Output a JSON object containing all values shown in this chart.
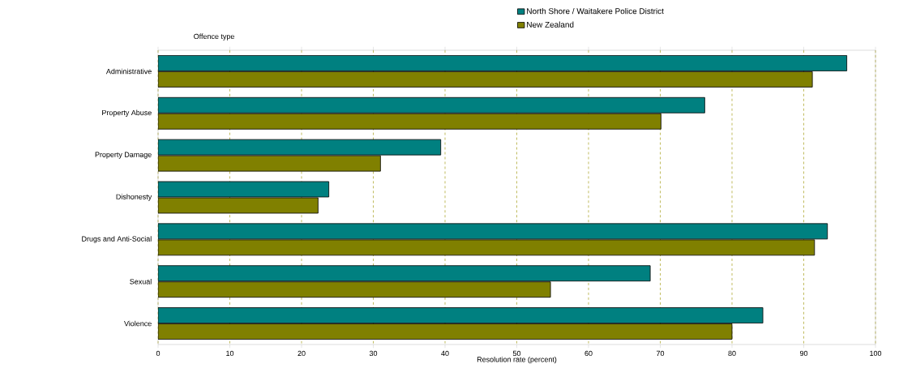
{
  "chart_data": {
    "type": "bar",
    "orientation": "horizontal",
    "xlabel": "Resolution rate (percent)",
    "ylabel": "Offence type",
    "categories": [
      "Administrative",
      "Property Abuse",
      "Property Damage",
      "Dishonesty",
      "Drugs and Anti-Social",
      "Sexual",
      "Violence"
    ],
    "series": [
      {
        "name": "North Shore / Waitakere Police District",
        "color": "#008080",
        "values": [
          96.0,
          76.2,
          39.4,
          23.8,
          93.3,
          68.6,
          84.3
        ]
      },
      {
        "name": "New Zealand",
        "color": "#808000",
        "values": [
          91.2,
          70.1,
          31.0,
          22.3,
          91.5,
          54.7,
          80.0
        ]
      }
    ],
    "xlim": [
      0,
      100
    ],
    "xticks": [
      0,
      10,
      20,
      30,
      40,
      50,
      60,
      70,
      80,
      90,
      100
    ],
    "grid": "x",
    "legend": "top right"
  }
}
